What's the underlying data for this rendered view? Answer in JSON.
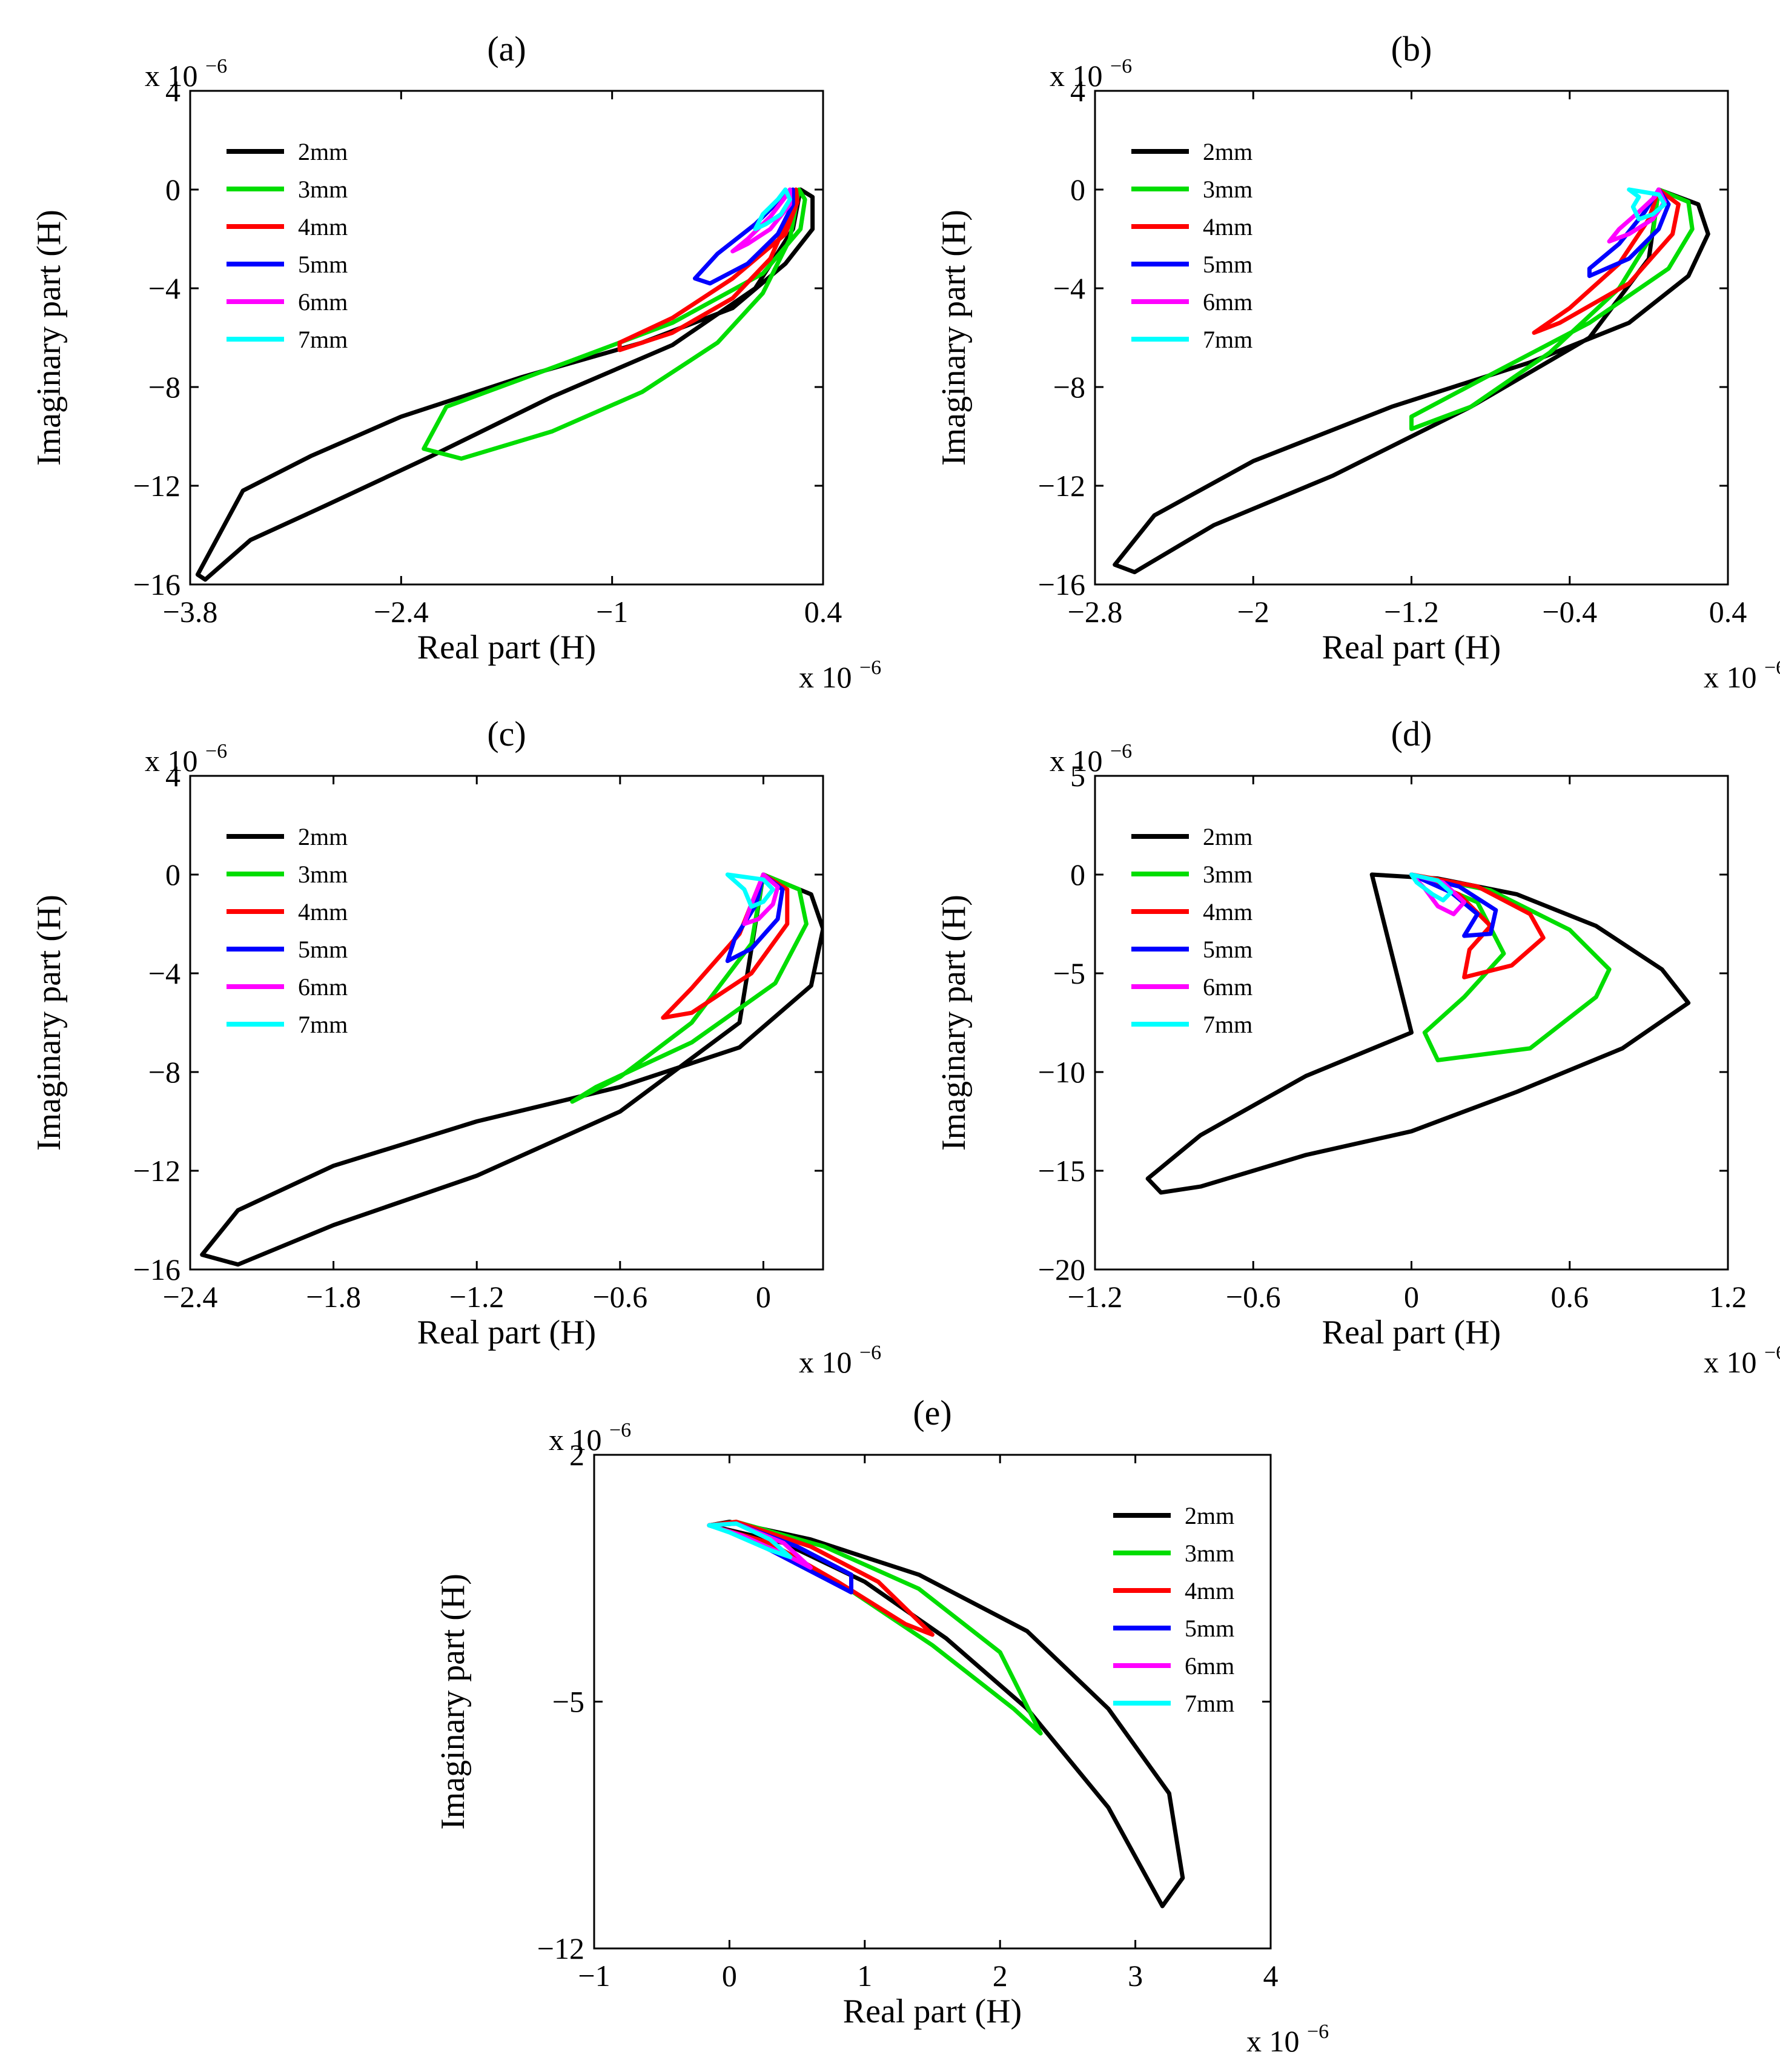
{
  "chart_data": [
    {
      "type": "line",
      "title": "(a)",
      "xlabel": "Real part (H)",
      "ylabel": "Imaginary part (H)",
      "x_multiplier": "x 10",
      "x_multiplier_exp": "−6",
      "y_multiplier": "x 10",
      "y_multiplier_exp": "−6",
      "xlim": [
        -3.8,
        0.4
      ],
      "ylim": [
        -16,
        4
      ],
      "xticks": [
        -3.8,
        -2.4,
        -1,
        0.4
      ],
      "xtick_labels": [
        "−3.8",
        "−2.4",
        "−1",
        "0.4"
      ],
      "yticks": [
        -16,
        -12,
        -8,
        -4,
        0,
        4
      ],
      "ytick_labels": [
        "−16",
        "−12",
        "−8",
        "−4",
        "0",
        "4"
      ],
      "legend_position": "top-left",
      "series": [
        {
          "name": "2mm",
          "color": "#000000",
          "x": [
            0.25,
            0.33,
            0.33,
            0.15,
            -0.2,
            -0.8,
            -1.6,
            -2.4,
            -3.0,
            -3.45,
            -3.75,
            -3.7,
            -3.4,
            -2.9,
            -2.2,
            -1.4,
            -0.6,
            -0.05,
            0.2,
            0.25
          ],
          "y": [
            0,
            -0.3,
            -1.6,
            -3.0,
            -4.8,
            -6.2,
            -7.6,
            -9.2,
            -10.8,
            -12.2,
            -15.6,
            -15.8,
            -14.2,
            -12.8,
            -10.8,
            -8.4,
            -6.3,
            -4.0,
            -1.6,
            0
          ]
        },
        {
          "name": "3mm",
          "color": "#00dd00",
          "x": [
            0.24,
            0.28,
            0.25,
            0.0,
            -0.6,
            -1.3,
            -2.1,
            -2.25,
            -2.0,
            -1.4,
            -0.8,
            -0.3,
            0.0,
            0.18,
            0.24
          ],
          "y": [
            0,
            -0.4,
            -1.6,
            -3.4,
            -5.4,
            -7.0,
            -8.8,
            -10.5,
            -10.9,
            -9.8,
            -8.2,
            -6.2,
            -4.2,
            -2.0,
            0
          ]
        },
        {
          "name": "4mm",
          "color": "#ff0000",
          "x": [
            0.22,
            0.23,
            0.15,
            -0.2,
            -0.6,
            -0.95,
            -0.95,
            -0.6,
            -0.2,
            0.05,
            0.18,
            0.22
          ],
          "y": [
            0,
            -0.5,
            -1.8,
            -3.6,
            -5.2,
            -6.2,
            -6.5,
            -5.8,
            -4.4,
            -2.8,
            -1.0,
            0
          ]
        },
        {
          "name": "5mm",
          "color": "#0000ff",
          "x": [
            0.2,
            0.2,
            0.1,
            -0.1,
            -0.35,
            -0.45,
            -0.3,
            -0.05,
            0.1,
            0.2
          ],
          "y": [
            0,
            -0.6,
            -1.8,
            -3.0,
            -3.8,
            -3.6,
            -2.6,
            -1.4,
            -0.5,
            0
          ]
        },
        {
          "name": "6mm",
          "color": "#ff00ff",
          "x": [
            0.18,
            0.18,
            0.05,
            -0.1,
            -0.2,
            -0.1,
            0.05,
            0.15,
            0.18
          ],
          "y": [
            0,
            -0.6,
            -1.6,
            -2.2,
            -2.5,
            -2.0,
            -1.1,
            -0.3,
            0
          ]
        },
        {
          "name": "7mm",
          "color": "#00ffff",
          "x": [
            0.15,
            0.18,
            0.12,
            0.02,
            -0.05,
            0.0,
            0.1,
            0.15
          ],
          "y": [
            0,
            -0.4,
            -1.0,
            -1.4,
            -1.6,
            -1.0,
            -0.4,
            0
          ]
        }
      ]
    },
    {
      "type": "line",
      "title": "(b)",
      "xlabel": "Real part (H)",
      "ylabel": "Imaginary part (H)",
      "x_multiplier": "x 10",
      "x_multiplier_exp": "−6",
      "y_multiplier": "x 10",
      "y_multiplier_exp": "−6",
      "xlim": [
        -2.8,
        0.4
      ],
      "ylim": [
        -16,
        4
      ],
      "xticks": [
        -2.8,
        -2,
        -1.2,
        -0.4,
        0.4
      ],
      "xtick_labels": [
        "−2.8",
        "−2",
        "−1.2",
        "−0.4",
        "0.4"
      ],
      "yticks": [
        -16,
        -12,
        -8,
        -4,
        0,
        4
      ],
      "ytick_labels": [
        "−16",
        "−12",
        "−8",
        "−4",
        "0",
        "4"
      ],
      "legend_position": "top-left",
      "series": [
        {
          "name": "2mm",
          "color": "#000000",
          "x": [
            0.05,
            0.25,
            0.3,
            0.2,
            -0.1,
            -0.6,
            -1.3,
            -2.0,
            -2.5,
            -2.7,
            -2.6,
            -2.2,
            -1.6,
            -0.9,
            -0.3,
            0.0,
            0.05
          ],
          "y": [
            0,
            -0.6,
            -1.8,
            -3.5,
            -5.4,
            -7.0,
            -8.8,
            -11.0,
            -13.2,
            -15.2,
            -15.5,
            -13.6,
            -11.6,
            -8.8,
            -6.0,
            -2.8,
            0
          ]
        },
        {
          "name": "3mm",
          "color": "#00dd00",
          "x": [
            0.05,
            0.2,
            0.22,
            0.1,
            -0.3,
            -0.8,
            -1.2,
            -1.2,
            -0.9,
            -0.5,
            -0.15,
            0.02,
            0.05
          ],
          "y": [
            0,
            -0.5,
            -1.6,
            -3.2,
            -5.4,
            -7.5,
            -9.2,
            -9.7,
            -8.8,
            -6.6,
            -4.0,
            -1.8,
            0
          ]
        },
        {
          "name": "4mm",
          "color": "#ff0000",
          "x": [
            0.05,
            0.15,
            0.12,
            -0.1,
            -0.45,
            -0.58,
            -0.4,
            -0.15,
            0.0,
            0.05
          ],
          "y": [
            0,
            -0.6,
            -1.8,
            -3.8,
            -5.4,
            -5.8,
            -4.8,
            -3.0,
            -1.2,
            0
          ]
        },
        {
          "name": "5mm",
          "color": "#0000ff",
          "x": [
            0.05,
            0.1,
            0.05,
            -0.1,
            -0.3,
            -0.3,
            -0.15,
            -0.02,
            0.05
          ],
          "y": [
            0,
            -0.6,
            -1.6,
            -2.8,
            -3.5,
            -3.2,
            -2.2,
            -0.9,
            0
          ]
        },
        {
          "name": "6mm",
          "color": "#ff00ff",
          "x": [
            0.05,
            0.08,
            0.02,
            -0.1,
            -0.2,
            -0.15,
            -0.05,
            0.03,
            0.05
          ],
          "y": [
            0,
            -0.5,
            -1.2,
            -1.8,
            -2.1,
            -1.6,
            -0.9,
            -0.3,
            0
          ]
        },
        {
          "name": "7mm",
          "color": "#00ffff",
          "x": [
            -0.1,
            0.05,
            0.08,
            0.02,
            -0.05,
            -0.08,
            -0.05,
            -0.1
          ],
          "y": [
            0,
            -0.2,
            -0.6,
            -1.0,
            -1.2,
            -0.7,
            -0.3,
            0
          ]
        }
      ]
    },
    {
      "type": "line",
      "title": "(c)",
      "xlabel": "Real part (H)",
      "ylabel": "Imaginary part (H)",
      "x_multiplier": "x 10",
      "x_multiplier_exp": "−6",
      "y_multiplier": "x 10",
      "y_multiplier_exp": "−6",
      "xlim": [
        -2.4,
        0.25
      ],
      "ylim": [
        -16,
        4
      ],
      "xticks": [
        -2.4,
        -1.8,
        -1.2,
        -0.6,
        0
      ],
      "xtick_labels": [
        "−2.4",
        "−1.8",
        "−1.2",
        "−0.6",
        "0"
      ],
      "yticks": [
        -16,
        -12,
        -8,
        -4,
        0,
        4
      ],
      "ytick_labels": [
        "−16",
        "−12",
        "−8",
        "−4",
        "0",
        "4"
      ],
      "legend_position": "top-left",
      "series": [
        {
          "name": "2mm",
          "color": "#000000",
          "x": [
            0.0,
            0.2,
            0.25,
            0.2,
            -0.1,
            -0.6,
            -1.2,
            -1.8,
            -2.2,
            -2.35,
            -2.2,
            -1.8,
            -1.2,
            -0.6,
            -0.1,
            0.0
          ],
          "y": [
            0,
            -0.8,
            -2.2,
            -4.5,
            -7.0,
            -8.6,
            -10.0,
            -11.8,
            -13.6,
            -15.4,
            -15.8,
            -14.2,
            -12.2,
            -9.6,
            -6.0,
            0
          ]
        },
        {
          "name": "3mm",
          "color": "#00dd00",
          "x": [
            0.0,
            0.15,
            0.18,
            0.05,
            -0.3,
            -0.7,
            -0.8,
            -0.6,
            -0.3,
            -0.05,
            0.0
          ],
          "y": [
            0,
            -0.6,
            -2.0,
            -4.4,
            -6.8,
            -8.6,
            -9.2,
            -8.2,
            -6.0,
            -2.8,
            0
          ]
        },
        {
          "name": "4mm",
          "color": "#ff0000",
          "x": [
            0.0,
            0.1,
            0.1,
            -0.05,
            -0.3,
            -0.42,
            -0.3,
            -0.1,
            0.0
          ],
          "y": [
            0,
            -0.6,
            -2.0,
            -4.0,
            -5.6,
            -5.8,
            -4.6,
            -2.4,
            0
          ]
        },
        {
          "name": "5mm",
          "color": "#0000ff",
          "x": [
            0.0,
            0.08,
            0.06,
            -0.05,
            -0.15,
            -0.12,
            -0.03,
            0.0
          ],
          "y": [
            0,
            -0.6,
            -1.8,
            -3.0,
            -3.5,
            -2.6,
            -1.2,
            0
          ]
        },
        {
          "name": "6mm",
          "color": "#ff00ff",
          "x": [
            0.0,
            0.06,
            0.04,
            -0.02,
            -0.08,
            -0.05,
            0.0
          ],
          "y": [
            0,
            -0.5,
            -1.2,
            -1.8,
            -2.0,
            -1.2,
            0
          ]
        },
        {
          "name": "7mm",
          "color": "#00ffff",
          "x": [
            -0.15,
            0.0,
            0.04,
            0.0,
            -0.05,
            -0.08,
            -0.15
          ],
          "y": [
            0,
            -0.2,
            -0.6,
            -1.1,
            -1.3,
            -0.6,
            0
          ]
        }
      ]
    },
    {
      "type": "line",
      "title": "(d)",
      "xlabel": "Real part (H)",
      "ylabel": "Imaginary part (H)",
      "x_multiplier": "x 10",
      "x_multiplier_exp": "−6",
      "y_multiplier": "x 10",
      "y_multiplier_exp": "−6",
      "xlim": [
        -1.2,
        1.2
      ],
      "ylim": [
        -20,
        5
      ],
      "xticks": [
        -1.2,
        -0.6,
        0,
        0.6,
        1.2
      ],
      "xtick_labels": [
        "−1.2",
        "−0.6",
        "0",
        "0.6",
        "1.2"
      ],
      "yticks": [
        -20,
        -15,
        -10,
        -5,
        0,
        5
      ],
      "ytick_labels": [
        "−20",
        "−15",
        "−10",
        "−5",
        "0",
        "5"
      ],
      "legend_position": "top-left",
      "series": [
        {
          "name": "2mm",
          "color": "#000000",
          "x": [
            -0.15,
            0.1,
            0.4,
            0.7,
            0.95,
            1.05,
            0.8,
            0.4,
            0.0,
            -0.4,
            -0.8,
            -0.95,
            -1.0,
            -0.8,
            -0.4,
            0.0,
            -0.15
          ],
          "y": [
            0,
            -0.2,
            -1.0,
            -2.6,
            -4.8,
            -6.5,
            -8.8,
            -11.0,
            -13.0,
            -14.2,
            -15.8,
            -16.1,
            -15.4,
            -13.2,
            -10.2,
            -8.0,
            0
          ]
        },
        {
          "name": "3mm",
          "color": "#00dd00",
          "x": [
            0.0,
            0.3,
            0.6,
            0.75,
            0.7,
            0.45,
            0.1,
            0.05,
            0.2,
            0.35,
            0.25,
            0.0
          ],
          "y": [
            0,
            -0.8,
            -2.8,
            -4.8,
            -6.2,
            -8.8,
            -9.4,
            -8.0,
            -6.2,
            -4.0,
            -1.4,
            0
          ]
        },
        {
          "name": "4mm",
          "color": "#ff0000",
          "x": [
            0.0,
            0.25,
            0.45,
            0.5,
            0.38,
            0.2,
            0.22,
            0.3,
            0.18,
            0.0
          ],
          "y": [
            0,
            -0.6,
            -2.0,
            -3.2,
            -4.6,
            -5.2,
            -3.8,
            -2.6,
            -1.0,
            0
          ]
        },
        {
          "name": "5mm",
          "color": "#0000ff",
          "x": [
            0.0,
            0.18,
            0.32,
            0.3,
            0.2,
            0.25,
            0.15,
            0.0
          ],
          "y": [
            0,
            -0.6,
            -1.8,
            -3.0,
            -3.1,
            -2.0,
            -0.9,
            0
          ]
        },
        {
          "name": "6mm",
          "color": "#ff00ff",
          "x": [
            0.0,
            0.12,
            0.2,
            0.16,
            0.1,
            0.05,
            0.0
          ],
          "y": [
            0,
            -0.4,
            -1.4,
            -2.0,
            -1.6,
            -0.7,
            0
          ]
        },
        {
          "name": "7mm",
          "color": "#00ffff",
          "x": [
            0.0,
            0.1,
            0.15,
            0.12,
            0.08,
            0.02,
            0.0
          ],
          "y": [
            0,
            -0.3,
            -0.9,
            -1.3,
            -1.0,
            -0.4,
            0
          ]
        }
      ]
    },
    {
      "type": "line",
      "title": "(e)",
      "xlabel": "Real part (H)",
      "ylabel": "Imaginary part (H)",
      "x_multiplier": "x 10",
      "x_multiplier_exp": "−6",
      "y_multiplier": "x 10",
      "y_multiplier_exp": "−6",
      "xlim": [
        -1,
        4
      ],
      "ylim": [
        -12,
        2
      ],
      "xticks": [
        -1,
        0,
        1,
        2,
        3,
        4
      ],
      "xtick_labels": [
        "−1",
        "0",
        "1",
        "2",
        "3",
        "4"
      ],
      "yticks": [
        -12,
        -5,
        2
      ],
      "ytick_labels": [
        "−12",
        "−5",
        "2"
      ],
      "legend_position": "top-right",
      "series": [
        {
          "name": "2mm",
          "color": "#000000",
          "x": [
            -0.15,
            0.0,
            0.6,
            1.4,
            2.2,
            2.8,
            3.25,
            3.35,
            3.2,
            2.8,
            2.2,
            1.6,
            1.0,
            0.4,
            -0.15
          ],
          "y": [
            0,
            0.1,
            -0.4,
            -1.4,
            -3.0,
            -5.2,
            -7.6,
            -10.0,
            -10.8,
            -8.0,
            -5.2,
            -3.2,
            -1.6,
            -0.5,
            0
          ]
        },
        {
          "name": "3mm",
          "color": "#00dd00",
          "x": [
            -0.15,
            0.05,
            0.7,
            1.4,
            2.0,
            2.3,
            2.1,
            1.5,
            0.8,
            0.2,
            -0.15
          ],
          "y": [
            0,
            0.1,
            -0.6,
            -1.8,
            -3.6,
            -5.9,
            -5.2,
            -3.4,
            -1.6,
            -0.4,
            0
          ]
        },
        {
          "name": "4mm",
          "color": "#ff0000",
          "x": [
            -0.15,
            0.05,
            0.6,
            1.1,
            1.5,
            1.3,
            0.8,
            0.3,
            -0.15
          ],
          "y": [
            0,
            0.1,
            -0.6,
            -1.6,
            -3.1,
            -2.8,
            -1.6,
            -0.5,
            0
          ]
        },
        {
          "name": "5mm",
          "color": "#0000ff",
          "x": [
            -0.15,
            0.05,
            0.5,
            0.9,
            0.9,
            0.5,
            0.1,
            -0.15
          ],
          "y": [
            0,
            0.05,
            -0.6,
            -1.4,
            -1.9,
            -1.1,
            -0.3,
            0
          ]
        },
        {
          "name": "6mm",
          "color": "#ff00ff",
          "x": [
            -0.15,
            0.05,
            0.4,
            0.6,
            0.45,
            0.1,
            -0.15
          ],
          "y": [
            0,
            0.05,
            -0.5,
            -1.2,
            -0.9,
            -0.3,
            0
          ]
        },
        {
          "name": "7mm",
          "color": "#00ffff",
          "x": [
            -0.15,
            0.05,
            0.3,
            0.45,
            0.3,
            0.0,
            -0.15
          ],
          "y": [
            0,
            0.05,
            -0.4,
            -0.9,
            -0.7,
            -0.2,
            0
          ]
        }
      ]
    }
  ]
}
